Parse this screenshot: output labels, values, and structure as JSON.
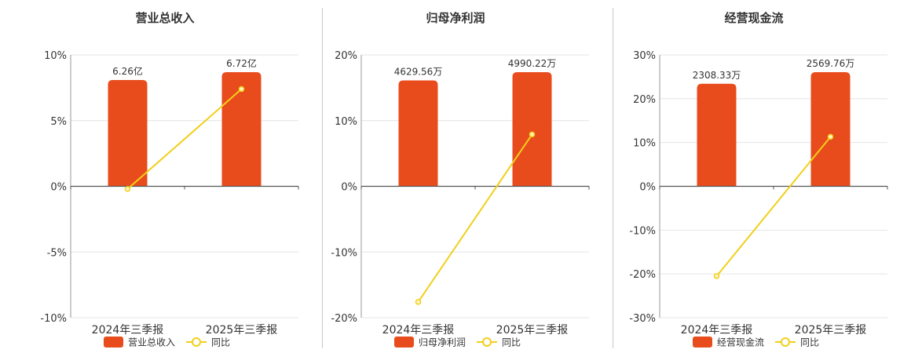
{
  "colors": {
    "bar": "#e84c1c",
    "line": "#f2cf1a",
    "marker_fill": "#fff6c8",
    "axis": "#333333",
    "grid": "#e4e4e4",
    "text": "#333333"
  },
  "chart_data": [
    {
      "type": "bar",
      "title": "营业总收入",
      "categories": [
        "2024年三季报",
        "2025年三季报"
      ],
      "series": [
        {
          "name": "营业总收入",
          "type": "bar",
          "values": [
            6.26,
            6.72
          ],
          "value_labels": [
            "6.26亿",
            "6.72亿"
          ]
        },
        {
          "name": "同比",
          "type": "line",
          "values": [
            -0.2,
            7.4
          ]
        }
      ],
      "ylim": [
        -10,
        10
      ],
      "yticks": [
        10,
        5,
        0,
        -5,
        -10
      ],
      "ytick_labels": [
        "10%",
        "5%",
        "0%",
        "-5%",
        "-10%"
      ],
      "grid": true,
      "legend": "bottom-center",
      "legend_entries": [
        "营业总收入",
        "同比"
      ]
    },
    {
      "type": "bar",
      "title": "归母净利润",
      "categories": [
        "2024年三季报",
        "2025年三季报"
      ],
      "series": [
        {
          "name": "归母净利润",
          "type": "bar",
          "values": [
            4629.56,
            4990.22
          ],
          "value_labels": [
            "4629.56万",
            "4990.22万"
          ]
        },
        {
          "name": "同比",
          "type": "line",
          "values": [
            -17.6,
            7.9
          ]
        }
      ],
      "ylim": [
        -20,
        20
      ],
      "yticks": [
        20,
        10,
        0,
        -10,
        -20
      ],
      "ytick_labels": [
        "20%",
        "10%",
        "0%",
        "-10%",
        "-20%"
      ],
      "grid": true,
      "legend": "bottom-center",
      "legend_entries": [
        "归母净利润",
        "同比"
      ]
    },
    {
      "type": "bar",
      "title": "经营现金流",
      "categories": [
        "2024年三季报",
        "2025年三季报"
      ],
      "series": [
        {
          "name": "经营现金流",
          "type": "bar",
          "values": [
            2308.33,
            2569.76
          ],
          "value_labels": [
            "2308.33万",
            "2569.76万"
          ]
        },
        {
          "name": "同比",
          "type": "line",
          "values": [
            -20.5,
            11.3
          ]
        }
      ],
      "ylim": [
        -30,
        30
      ],
      "yticks": [
        30,
        20,
        10,
        0,
        -10,
        -20,
        -30
      ],
      "ytick_labels": [
        "30%",
        "20%",
        "10%",
        "0%",
        "-10%",
        "-20%",
        "-30%"
      ],
      "grid": true,
      "legend": "bottom-center",
      "legend_entries": [
        "经营现金流",
        "同比"
      ]
    }
  ]
}
